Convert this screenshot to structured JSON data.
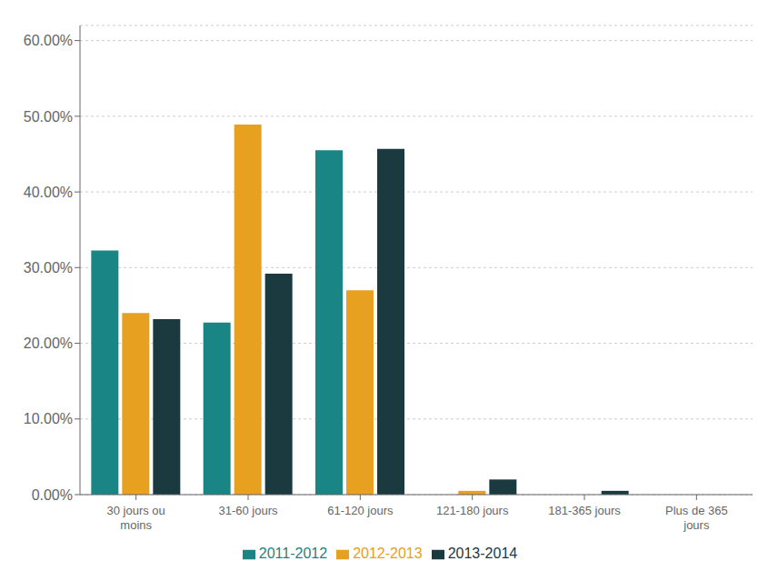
{
  "chart_data": {
    "type": "bar",
    "categories": [
      "30 jours ou\nmoins",
      "31-60 jours",
      "61-120 jours",
      "121-180 jours",
      "181-365 jours",
      "Plus de 365\njours"
    ],
    "series": [
      {
        "name": "2011-2012",
        "color": "#1a8585",
        "values": [
          0.3225,
          0.2275,
          0.455,
          0.0,
          0.0,
          0.0
        ]
      },
      {
        "name": "2012-2013",
        "color": "#e8a020",
        "values": [
          0.24,
          0.489,
          0.27,
          0.005,
          0.0,
          0.0
        ]
      },
      {
        "name": "2013-2014",
        "color": "#1a3a40",
        "values": [
          0.232,
          0.292,
          0.457,
          0.02,
          0.005,
          0.0
        ]
      }
    ],
    "ylim": [
      0.0,
      0.62
    ],
    "yticks": [
      {
        "value": 0.0,
        "label": "0.00%"
      },
      {
        "value": 0.1,
        "label": "10.00%"
      },
      {
        "value": 0.2,
        "label": "20.00%"
      },
      {
        "value": 0.3,
        "label": "30.00%"
      },
      {
        "value": 0.4,
        "label": "40.00%"
      },
      {
        "value": 0.5,
        "label": "50.00%"
      },
      {
        "value": 0.6,
        "label": "60.00%"
      }
    ],
    "grid": true,
    "legend": "bottom"
  }
}
